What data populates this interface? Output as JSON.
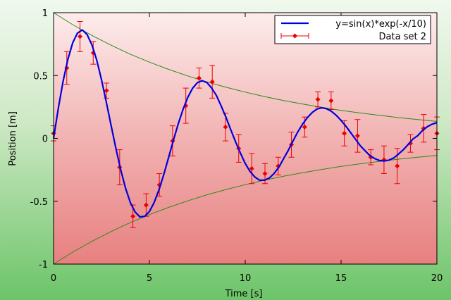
{
  "chart_data": {
    "type": "line",
    "title": "",
    "xlabel": "Time [s]",
    "ylabel": "Position [m]",
    "xlim": [
      0,
      20
    ],
    "ylim": [
      -1,
      1
    ],
    "xticks": [
      {
        "value": 0,
        "label": "0"
      },
      {
        "value": 5,
        "label": "5"
      },
      {
        "value": 10,
        "label": "10"
      },
      {
        "value": 15,
        "label": "15"
      },
      {
        "value": 20,
        "label": "20"
      }
    ],
    "yticks": [
      {
        "value": -1,
        "label": "-1"
      },
      {
        "value": -0.5,
        "label": "-0.5"
      },
      {
        "value": 0,
        "label": "0"
      },
      {
        "value": 0.5,
        "label": "0.5"
      },
      {
        "value": 1,
        "label": "1"
      }
    ],
    "grid": false,
    "legend_position": "top-right",
    "series": [
      {
        "name": "y=sin(x)*exp(-x/10)",
        "kind": "curve",
        "color": "#0000dd",
        "x": [
          0,
          0.25,
          0.5,
          0.75,
          1,
          1.25,
          1.5,
          1.75,
          2,
          2.25,
          2.5,
          2.75,
          3,
          3.25,
          3.5,
          3.75,
          4,
          4.25,
          4.5,
          4.75,
          5,
          5.25,
          5.5,
          5.75,
          6,
          6.25,
          6.5,
          6.75,
          7,
          7.25,
          7.5,
          7.75,
          8,
          8.25,
          8.5,
          8.75,
          9,
          9.25,
          9.5,
          9.75,
          10,
          10.25,
          10.5,
          10.75,
          11,
          11.25,
          11.5,
          11.75,
          12,
          12.25,
          12.5,
          12.75,
          13,
          13.25,
          13.5,
          13.75,
          14,
          14.25,
          14.5,
          14.75,
          15,
          15.25,
          15.5,
          15.75,
          16,
          16.25,
          16.5,
          16.75,
          17,
          17.25,
          17.5,
          17.75,
          18,
          18.25,
          18.5,
          18.75,
          19,
          19.25,
          19.5,
          19.75,
          20
        ],
        "y": [
          0,
          0.241,
          0.456,
          0.631,
          0.761,
          0.838,
          0.863,
          0.826,
          0.744,
          0.624,
          0.468,
          0.29,
          0.104,
          -0.078,
          -0.247,
          -0.393,
          -0.508,
          -0.585,
          -0.624,
          -0.621,
          -0.582,
          -0.51,
          -0.409,
          -0.288,
          -0.153,
          -0.017,
          0.113,
          0.228,
          0.326,
          0.398,
          0.443,
          0.459,
          0.444,
          0.4,
          0.34,
          0.256,
          0.166,
          0.067,
          -0.029,
          -0.117,
          -0.2,
          -0.263,
          -0.307,
          -0.333,
          -0.333,
          -0.316,
          -0.28,
          -0.23,
          -0.162,
          -0.094,
          -0.019,
          0.054,
          0.115,
          0.167,
          0.207,
          0.234,
          0.243,
          0.236,
          0.215,
          0.183,
          0.143,
          0.097,
          0.046,
          -0.006,
          -0.058,
          -0.098,
          -0.136,
          -0.16,
          -0.176,
          -0.179,
          -0.173,
          -0.156,
          -0.124,
          -0.09,
          -0.048,
          -0.005,
          0.022,
          0.063,
          0.093,
          0.113,
          0.125
        ]
      },
      {
        "name": "",
        "kind": "envelope",
        "color": "#2a8a1a",
        "x": [
          0,
          1,
          2,
          3,
          4,
          5,
          6,
          7,
          8,
          9,
          10,
          11,
          12,
          13,
          14,
          15,
          16,
          17,
          18,
          19,
          20
        ],
        "y": [
          1,
          0.905,
          0.819,
          0.741,
          0.67,
          0.607,
          0.549,
          0.497,
          0.449,
          0.407,
          0.368,
          0.333,
          0.301,
          0.273,
          0.247,
          0.223,
          0.202,
          0.183,
          0.165,
          0.15,
          0.135
        ]
      },
      {
        "name": "",
        "kind": "envelope",
        "color": "#2a8a1a",
        "x": [
          0,
          1,
          2,
          3,
          4,
          5,
          6,
          7,
          8,
          9,
          10,
          11,
          12,
          13,
          14,
          15,
          16,
          17,
          18,
          19,
          20
        ],
        "y": [
          -1,
          -0.905,
          -0.819,
          -0.741,
          -0.67,
          -0.607,
          -0.549,
          -0.497,
          -0.449,
          -0.407,
          -0.368,
          -0.333,
          -0.301,
          -0.273,
          -0.247,
          -0.223,
          -0.202,
          -0.183,
          -0.165,
          -0.15,
          -0.135
        ]
      },
      {
        "name": "Data set 2",
        "kind": "errorbar",
        "color": "#ee0000",
        "x": [
          0,
          0.69,
          1.38,
          2.07,
          2.76,
          3.45,
          4.14,
          4.83,
          5.52,
          6.21,
          6.9,
          7.59,
          8.28,
          8.97,
          9.66,
          10.34,
          11.03,
          11.72,
          12.41,
          13.1,
          13.79,
          14.48,
          15.17,
          15.86,
          16.55,
          17.24,
          17.93,
          18.62,
          19.31,
          20
        ],
        "y": [
          0.04,
          0.56,
          0.81,
          0.68,
          0.38,
          -0.23,
          -0.62,
          -0.53,
          -0.37,
          -0.02,
          0.26,
          0.48,
          0.45,
          0.09,
          -0.08,
          -0.24,
          -0.28,
          -0.22,
          -0.05,
          0.09,
          0.31,
          0.3,
          0.04,
          0.02,
          -0.15,
          -0.17,
          -0.22,
          -0.04,
          0.08,
          0.04
        ],
        "err": [
          0.06,
          0.13,
          0.12,
          0.09,
          0.06,
          0.14,
          0.09,
          0.09,
          0.09,
          0.12,
          0.14,
          0.08,
          0.13,
          0.11,
          0.11,
          0.12,
          0.08,
          0.07,
          0.1,
          0.08,
          0.06,
          0.07,
          0.1,
          0.13,
          0.06,
          0.11,
          0.14,
          0.07,
          0.11,
          0.13
        ]
      }
    ]
  }
}
